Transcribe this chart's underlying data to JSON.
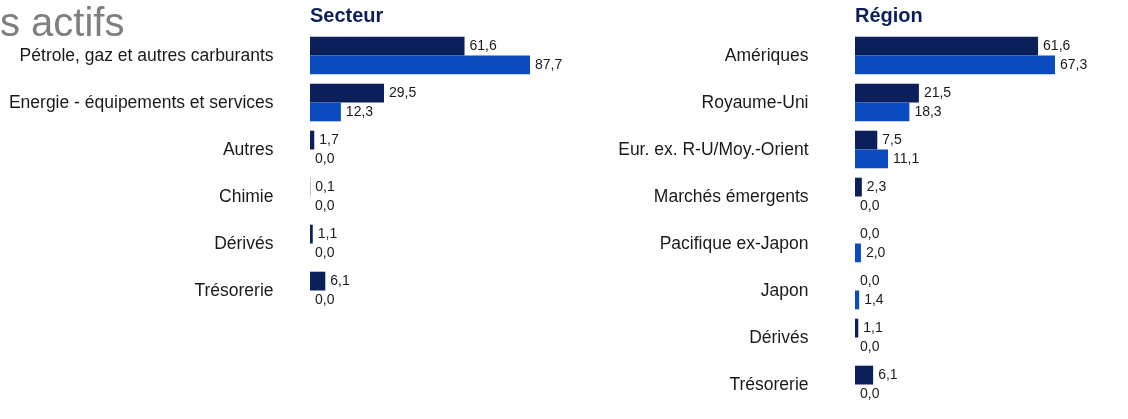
{
  "chart_data": [
    {
      "type": "bar",
      "orientation": "horizontal",
      "title": "Secteur",
      "annotations": [
        "s actifs"
      ],
      "categories": [
        "Pétrole, gaz et autres carburants",
        "Energie - équipements et services",
        "Autres",
        "Chimie",
        "Dérivés",
        "Trésorerie"
      ],
      "series": [
        {
          "color": "#0b1f5a",
          "values": [
            61.6,
            29.5,
            1.7,
            0.1,
            1.1,
            6.1
          ],
          "value_labels": [
            "61,6",
            "29,5",
            "1,7",
            "0,1",
            "1,1",
            "6,1"
          ]
        },
        {
          "color": "#0a4bbf",
          "values": [
            87.7,
            12.3,
            0.0,
            0.0,
            0.0,
            0.0
          ],
          "value_labels": [
            "87,7",
            "12,3",
            "0,0",
            "0,0",
            "0,0",
            "0,0"
          ]
        }
      ],
      "legend": false,
      "grid": false
    },
    {
      "type": "bar",
      "orientation": "horizontal",
      "title": "Région",
      "categories": [
        "Amériques",
        "Royaume-Uni",
        "Eur. ex. R-U/Moy.-Orient",
        "Marchés émergents",
        "Pacifique ex-Japon",
        "Japon",
        "Dérivés",
        "Trésorerie"
      ],
      "series": [
        {
          "color": "#0b1f5a",
          "values": [
            61.6,
            21.5,
            7.5,
            2.3,
            0.0,
            0.0,
            1.1,
            6.1
          ],
          "value_labels": [
            "61,6",
            "21,5",
            "7,5",
            "2,3",
            "0,0",
            "0,0",
            "1,1",
            "6,1"
          ]
        },
        {
          "color": "#0a4bbf",
          "values": [
            67.3,
            18.3,
            11.1,
            0.0,
            2.0,
            1.4,
            0.0,
            0.0
          ],
          "value_labels": [
            "67,3",
            "18,3",
            "11,1",
            "0,0",
            "2,0",
            "1,4",
            "0,0",
            "0,0"
          ]
        }
      ],
      "legend": false,
      "grid": false
    }
  ]
}
